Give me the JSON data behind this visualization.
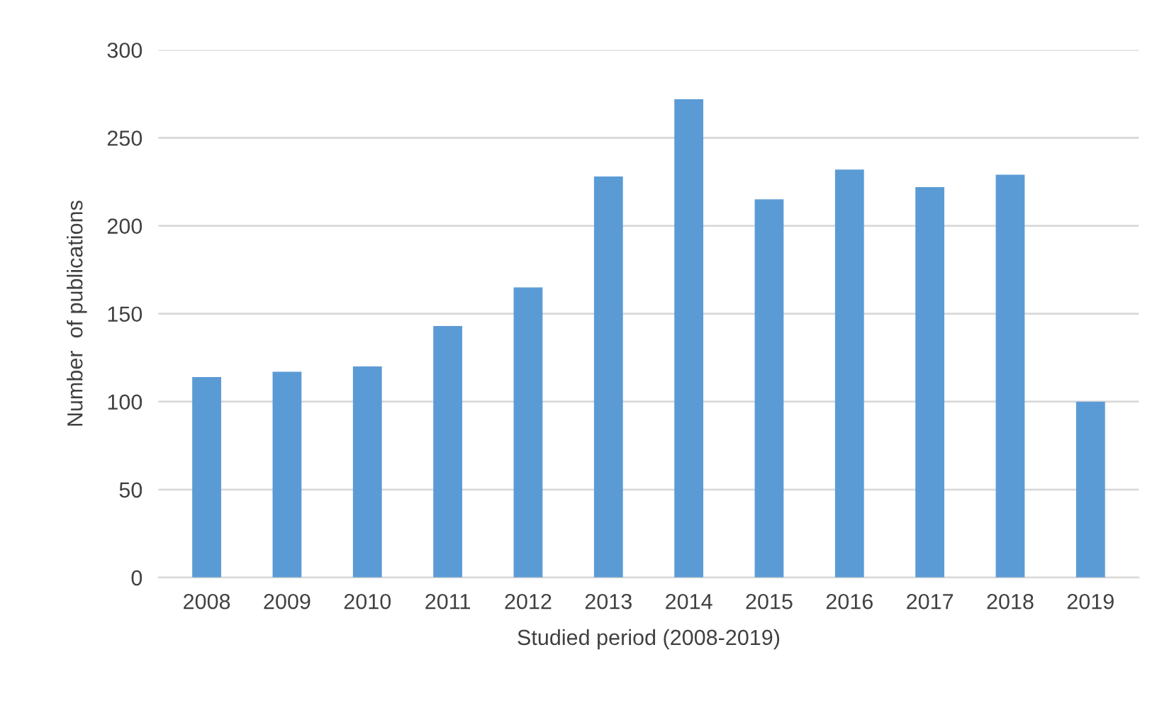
{
  "chart_data": {
    "type": "bar",
    "xlabel": "Studied period (2008-2019)",
    "ylabel": "Number  of publications",
    "categories": [
      "2008",
      "2009",
      "2010",
      "2011",
      "2012",
      "2013",
      "2014",
      "2015",
      "2016",
      "2017",
      "2018",
      "2019"
    ],
    "values": [
      114,
      117,
      120,
      143,
      165,
      228,
      272,
      215,
      232,
      222,
      229,
      100
    ],
    "color": "#5b9bd5",
    "ylim": [
      0,
      300
    ],
    "yticks": [
      0,
      50,
      100,
      150,
      200,
      250,
      300
    ],
    "grid": "y",
    "legend": false
  }
}
